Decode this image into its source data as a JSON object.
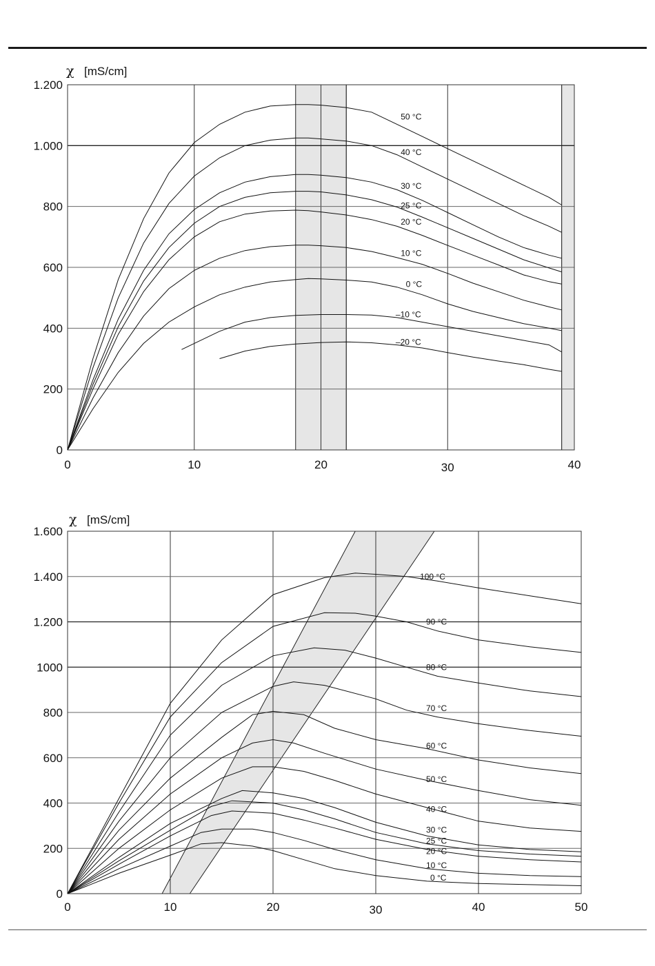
{
  "chart_data": [
    {
      "type": "line",
      "title": "",
      "ylabel": {
        "symbol": "χ",
        "unit": "[mS/cm]"
      },
      "xlabel": "",
      "xlim": [
        0,
        40
      ],
      "ylim": [
        0,
        1200
      ],
      "xticks": [
        0,
        10,
        20,
        30,
        40
      ],
      "xtick_labels": [
        "0",
        "10",
        "20",
        "30",
        "40"
      ],
      "yticks": [
        0,
        200,
        400,
        600,
        800,
        1000,
        1200
      ],
      "ytick_labels": [
        "0",
        "200",
        "400",
        "600",
        "800",
        "1.000",
        "1.200"
      ],
      "grid": true,
      "shaded_regions": [
        {
          "x": [
            18,
            22
          ],
          "fill": "#e6e6e6"
        },
        {
          "x": [
            39,
            40
          ],
          "fill": "#e6e6e6"
        }
      ],
      "series": [
        {
          "name": "50 °C",
          "x": [
            0,
            2,
            4,
            6,
            8,
            10,
            12,
            14,
            16,
            18,
            19,
            20,
            22,
            24,
            26,
            28,
            30,
            32,
            34,
            36,
            38,
            39
          ],
          "y": [
            0,
            300,
            560,
            760,
            910,
            1010,
            1070,
            1110,
            1130,
            1135,
            1135,
            1133,
            1125,
            1110,
            1070,
            1030,
            990,
            950,
            910,
            870,
            830,
            805
          ]
        },
        {
          "name": "40 °C",
          "x": [
            0,
            2,
            4,
            6,
            8,
            10,
            12,
            14,
            16,
            18,
            19,
            20,
            22,
            24,
            26,
            28,
            30,
            32,
            34,
            36,
            38,
            39
          ],
          "y": [
            0,
            270,
            500,
            680,
            810,
            900,
            960,
            1000,
            1018,
            1025,
            1025,
            1022,
            1015,
            1000,
            970,
            930,
            890,
            850,
            810,
            770,
            735,
            715
          ]
        },
        {
          "name": "30 °C",
          "x": [
            0,
            2,
            4,
            6,
            8,
            10,
            12,
            14,
            16,
            18,
            19,
            20,
            22,
            24,
            26,
            28,
            30,
            32,
            34,
            36,
            38,
            39
          ],
          "y": [
            0,
            230,
            430,
            590,
            710,
            790,
            845,
            880,
            898,
            905,
            905,
            903,
            895,
            880,
            855,
            820,
            780,
            740,
            700,
            665,
            640,
            630
          ]
        },
        {
          "name": "25 °C",
          "x": [
            0,
            2,
            4,
            6,
            8,
            10,
            12,
            14,
            16,
            18,
            19,
            20,
            22,
            24,
            26,
            28,
            30,
            32,
            34,
            36,
            38,
            39
          ],
          "y": [
            0,
            215,
            405,
            555,
            665,
            745,
            800,
            830,
            845,
            850,
            850,
            848,
            838,
            822,
            798,
            765,
            730,
            695,
            660,
            625,
            598,
            585
          ]
        },
        {
          "name": "20 °C",
          "x": [
            0,
            2,
            4,
            6,
            8,
            10,
            12,
            14,
            16,
            18,
            19,
            20,
            22,
            24,
            26,
            28,
            30,
            32,
            34,
            36,
            38,
            39
          ],
          "y": [
            0,
            200,
            380,
            520,
            625,
            700,
            750,
            775,
            785,
            788,
            786,
            782,
            772,
            757,
            735,
            705,
            672,
            640,
            608,
            575,
            553,
            545
          ]
        },
        {
          "name": "10 °C",
          "x": [
            0,
            2,
            4,
            6,
            8,
            10,
            12,
            14,
            16,
            18,
            19,
            20,
            22,
            24,
            26,
            28,
            30,
            32,
            34,
            36,
            38,
            39
          ],
          "y": [
            0,
            170,
            320,
            440,
            530,
            590,
            630,
            655,
            668,
            673,
            673,
            671,
            665,
            652,
            632,
            610,
            580,
            548,
            520,
            492,
            470,
            460
          ]
        },
        {
          "name": "0 °C",
          "x": [
            0,
            2,
            4,
            6,
            8,
            10,
            12,
            14,
            16,
            18,
            19,
            20,
            22,
            24,
            26,
            28,
            30,
            32,
            34,
            36,
            38,
            39
          ],
          "y": [
            0,
            135,
            255,
            350,
            420,
            470,
            510,
            535,
            552,
            560,
            563,
            562,
            558,
            552,
            535,
            510,
            480,
            455,
            435,
            415,
            400,
            392
          ]
        },
        {
          "name": "–10 °C",
          "x": [
            9,
            10,
            12,
            14,
            16,
            18,
            20,
            22,
            24,
            26,
            28,
            30,
            32,
            34,
            36,
            38,
            39
          ],
          "y": [
            330,
            350,
            390,
            420,
            435,
            442,
            445,
            445,
            443,
            435,
            420,
            405,
            390,
            375,
            360,
            345,
            322
          ]
        },
        {
          "name": "–20 °C",
          "x": [
            12,
            14,
            16,
            18,
            20,
            22,
            24,
            26,
            28,
            30,
            32,
            34,
            36,
            38,
            39
          ],
          "y": [
            300,
            325,
            340,
            348,
            353,
            355,
            352,
            345,
            335,
            320,
            305,
            292,
            280,
            265,
            258
          ]
        }
      ]
    },
    {
      "type": "line",
      "title": "",
      "ylabel": {
        "symbol": "χ",
        "unit": "[mS/cm]"
      },
      "xlabel": "",
      "xlim": [
        0,
        50
      ],
      "ylim": [
        0,
        1600
      ],
      "xticks": [
        0,
        10,
        20,
        30,
        40,
        50
      ],
      "xtick_labels": [
        "0",
        "10",
        "20",
        "30",
        "40",
        "50"
      ],
      "yticks": [
        0,
        200,
        400,
        600,
        800,
        1000,
        1200,
        1400,
        1600
      ],
      "ytick_labels": [
        "0",
        "200",
        "400",
        "600",
        "800",
        "1000",
        "1.200",
        "1.400",
        "1.600"
      ],
      "grid": true,
      "shaded_band": {
        "polygon": [
          [
            9.2,
            0
          ],
          [
            28,
            1600
          ],
          [
            35.7,
            1600
          ],
          [
            11.9,
            0
          ]
        ],
        "fill": "#e6e6e6"
      },
      "series": [
        {
          "name": "100 °C",
          "x": [
            0,
            5,
            10,
            15,
            20,
            25,
            28,
            30,
            33,
            36,
            40,
            45,
            50
          ],
          "y": [
            0,
            420,
            840,
            1120,
            1320,
            1395,
            1415,
            1410,
            1400,
            1380,
            1350,
            1315,
            1280
          ]
        },
        {
          "name": "90 °C",
          "x": [
            0,
            5,
            10,
            15,
            20,
            25,
            28,
            30,
            33,
            36,
            40,
            45,
            50
          ],
          "y": [
            0,
            400,
            780,
            1020,
            1180,
            1240,
            1238,
            1225,
            1200,
            1160,
            1120,
            1090,
            1065
          ]
        },
        {
          "name": "80 °C",
          "x": [
            0,
            5,
            10,
            15,
            20,
            24,
            27,
            30,
            33,
            36,
            40,
            45,
            50
          ],
          "y": [
            0,
            360,
            700,
            920,
            1050,
            1085,
            1075,
            1040,
            1000,
            960,
            930,
            895,
            870
          ]
        },
        {
          "name": "70 °C",
          "x": [
            0,
            5,
            10,
            15,
            20,
            22,
            25,
            30,
            33,
            36,
            40,
            45,
            50
          ],
          "y": [
            0,
            320,
            600,
            800,
            915,
            935,
            920,
            860,
            810,
            780,
            750,
            720,
            695
          ]
        },
        {
          "name": "60 °C",
          "x": [
            0,
            5,
            10,
            15,
            18,
            20,
            23,
            26,
            30,
            35,
            40,
            45,
            50
          ],
          "y": [
            0,
            280,
            510,
            690,
            790,
            805,
            790,
            730,
            680,
            640,
            590,
            555,
            530
          ]
        },
        {
          "name": "50 °C",
          "x": [
            0,
            5,
            10,
            15,
            18,
            20,
            22,
            25,
            30,
            35,
            40,
            45,
            50
          ],
          "y": [
            0,
            240,
            440,
            600,
            665,
            680,
            665,
            620,
            550,
            500,
            455,
            415,
            390
          ]
        },
        {
          "name": "40 °C",
          "x": [
            0,
            5,
            10,
            15,
            18,
            20,
            23,
            26,
            30,
            35,
            40,
            45,
            50
          ],
          "y": [
            0,
            200,
            370,
            510,
            560,
            560,
            540,
            500,
            440,
            380,
            320,
            290,
            275
          ]
        },
        {
          "name": "30 °C",
          "x": [
            0,
            5,
            10,
            15,
            17,
            20,
            23,
            26,
            30,
            35,
            40,
            45,
            50
          ],
          "y": [
            0,
            160,
            310,
            420,
            455,
            445,
            420,
            380,
            315,
            255,
            215,
            195,
            185
          ]
        },
        {
          "name": "25 °C",
          "x": [
            0,
            5,
            10,
            14,
            16,
            20,
            23,
            26,
            30,
            35,
            40,
            45,
            50
          ],
          "y": [
            0,
            145,
            280,
            385,
            410,
            400,
            370,
            330,
            270,
            220,
            190,
            175,
            165
          ]
        },
        {
          "name": "20 °C",
          "x": [
            0,
            5,
            10,
            14,
            16,
            20,
            23,
            26,
            30,
            35,
            40,
            45,
            50
          ],
          "y": [
            0,
            130,
            255,
            345,
            365,
            355,
            325,
            290,
            240,
            195,
            165,
            150,
            140
          ]
        },
        {
          "name": "10 °C",
          "x": [
            0,
            5,
            10,
            13,
            15,
            18,
            20,
            23,
            26,
            30,
            35,
            40,
            45,
            50
          ],
          "y": [
            0,
            110,
            210,
            270,
            285,
            285,
            270,
            235,
            195,
            150,
            110,
            90,
            80,
            75
          ]
        },
        {
          "name": "0 °C",
          "x": [
            0,
            5,
            10,
            13,
            15,
            18,
            20,
            23,
            26,
            30,
            35,
            40,
            45,
            50
          ],
          "y": [
            0,
            90,
            170,
            220,
            225,
            210,
            190,
            150,
            110,
            80,
            55,
            45,
            40,
            35
          ]
        }
      ]
    }
  ]
}
